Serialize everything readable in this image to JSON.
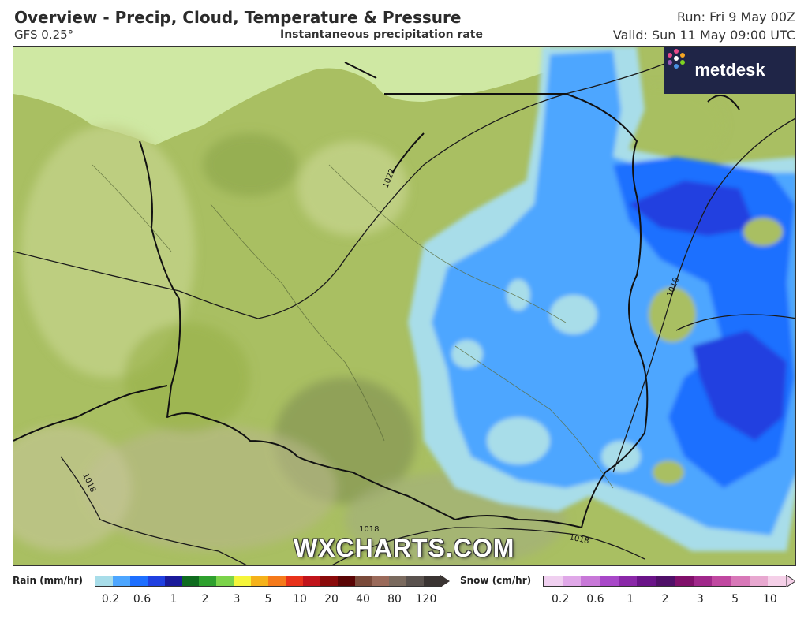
{
  "header": {
    "title": "Overview - Precip, Cloud, Temperature & Pressure",
    "model": "GFS 0.25°",
    "subtitle": "Instantaneous precipitation rate",
    "run": "Run: Fri 9 May 00Z",
    "valid": "Valid: Sun 11 May 09:00 UTC"
  },
  "brand": {
    "name": "metdesk",
    "icon": "metdesk-flower-icon"
  },
  "watermark": "WXCHARTS.COM",
  "isobars": [
    "1022",
    "1018",
    "1018",
    "1018",
    "1018"
  ],
  "legend": {
    "rain": {
      "label": "Rain (mm/hr)",
      "colors": [
        "#a8dde9",
        "#4da6ff",
        "#1e6fff",
        "#2040e0",
        "#1a1a9a",
        "#0f6b1f",
        "#2ea02e",
        "#7bd34a",
        "#f5f53a",
        "#f5b21a",
        "#f57a1a",
        "#e8321a",
        "#c0141a",
        "#8a0a0a",
        "#5a0505",
        "#7a4a3a",
        "#9a6a5a",
        "#7a6a5e",
        "#5a524e",
        "#3a3432"
      ],
      "ticks": [
        "0.2",
        "0.6",
        "1",
        "2",
        "3",
        "5",
        "10",
        "20",
        "40",
        "80",
        "120"
      ]
    },
    "snow": {
      "label": "Snow (cm/hr)",
      "colors": [
        "#f0d0f0",
        "#e0a8e8",
        "#c878d8",
        "#a848c8",
        "#8a28a8",
        "#6a1488",
        "#501068",
        "#80106a",
        "#a0288a",
        "#c048a0",
        "#d878b8",
        "#e8a8d0",
        "#f5d0e8"
      ],
      "ticks": [
        "0.2",
        "0.6",
        "1",
        "2",
        "3",
        "5",
        "10"
      ]
    }
  }
}
